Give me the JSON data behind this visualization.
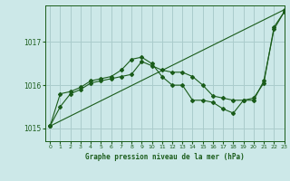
{
  "title": "Graphe pression niveau de la mer (hPa)",
  "bg_color": "#cce8e8",
  "grid_color": "#aacccc",
  "line_color": "#1a5c1a",
  "xlim": [
    -0.5,
    23
  ],
  "ylim": [
    1014.7,
    1017.85
  ],
  "yticks": [
    1015,
    1016,
    1017
  ],
  "xticks": [
    0,
    1,
    2,
    3,
    4,
    5,
    6,
    7,
    8,
    9,
    10,
    11,
    12,
    13,
    14,
    15,
    16,
    17,
    18,
    19,
    20,
    21,
    22,
    23
  ],
  "series1_x": [
    0,
    1,
    2,
    3,
    4,
    5,
    6,
    7,
    8,
    9,
    10,
    11,
    12,
    13,
    14,
    15,
    16,
    17,
    18,
    19,
    20,
    21,
    22,
    23
  ],
  "series1_y": [
    1015.05,
    1015.5,
    1015.8,
    1015.9,
    1016.05,
    1016.1,
    1016.15,
    1016.2,
    1016.25,
    1016.55,
    1016.45,
    1016.35,
    1016.3,
    1016.3,
    1016.2,
    1016.0,
    1015.75,
    1015.7,
    1015.65,
    1015.65,
    1015.7,
    1016.05,
    1017.35,
    1017.7
  ],
  "series2_x": [
    0,
    1,
    2,
    3,
    4,
    5,
    6,
    7,
    8,
    9,
    10,
    11,
    12,
    13,
    14,
    15,
    16,
    17,
    18,
    19,
    20,
    21,
    22,
    23
  ],
  "series2_y": [
    1015.05,
    1015.8,
    1015.85,
    1015.95,
    1016.1,
    1016.15,
    1016.2,
    1016.35,
    1016.6,
    1016.65,
    1016.5,
    1016.2,
    1016.0,
    1016.0,
    1015.65,
    1015.65,
    1015.6,
    1015.45,
    1015.35,
    1015.65,
    1015.65,
    1016.1,
    1017.3,
    1017.7
  ],
  "series3_x": [
    0,
    23
  ],
  "series3_y": [
    1015.05,
    1017.75
  ]
}
